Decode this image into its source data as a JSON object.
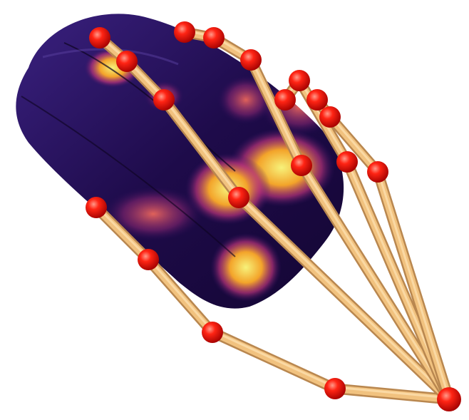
{
  "scene": {
    "colors": {
      "background": "#ffffff",
      "object_base": "#1e0b4a",
      "heat_mid": "#c2357a",
      "heat_high": "#f39a2c",
      "heat_peak": "#f7f27a",
      "bone": "#f1c27f",
      "bone_shadow": "#b9874f",
      "joint": "#ff1a10"
    },
    "icons": [
      "heatmap-mouse-object",
      "hand-skeleton"
    ]
  }
}
